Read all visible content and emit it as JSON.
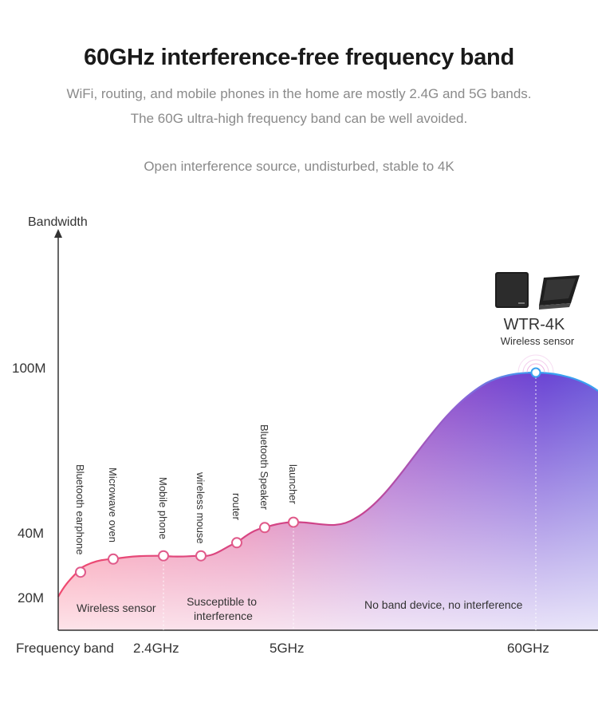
{
  "header": {
    "title": "60GHz interference-free frequency band",
    "subtitle_line1": "WiFi, routing, and mobile phones in the home are mostly 2.4G and 5G bands.",
    "subtitle_line2": "The 60G ultra-high frequency band can be well avoided.",
    "tagline": "Open interference source, undisturbed, stable to 4K"
  },
  "device": {
    "model": "WTR-4K",
    "caption": "Wireless sensor",
    "icons": [
      "device-box-icon",
      "device-box-tilted-icon"
    ]
  },
  "chart_data": {
    "type": "area",
    "ylabel": "Bandwidth",
    "xlabel": "Frequency band",
    "y_ticks": [
      {
        "value": 20,
        "label": "20M"
      },
      {
        "value": 40,
        "label": "40M"
      },
      {
        "value": 100,
        "label": "100M"
      }
    ],
    "x_ticks": [
      {
        "value": 2.4,
        "label": "2.4GHz"
      },
      {
        "value": 5,
        "label": "5GHz"
      },
      {
        "value": 60,
        "label": "60GHz"
      }
    ],
    "points": [
      {
        "name": "Bluetooth earphone",
        "y": 28
      },
      {
        "name": "Microwave oven",
        "y": 32
      },
      {
        "name": "Mobile phone",
        "y": 33
      },
      {
        "name": "wireless mouse",
        "y": 33
      },
      {
        "name": "router",
        "y": 37
      },
      {
        "name": "Bluetooth Speaker",
        "y": 42
      },
      {
        "name": "launcher",
        "y": 44
      },
      {
        "name": "WTR-4K",
        "y": 100
      }
    ],
    "region_labels": [
      "Wireless sensor",
      "Susceptible to\ninterference",
      "No band device, no interference"
    ],
    "colors": {
      "low_band": "#f0506e",
      "mid_band": "#cc3f86",
      "high_band": "#6a3fd0",
      "peak_line": "#3aa0f0",
      "axis": "#333333"
    }
  }
}
